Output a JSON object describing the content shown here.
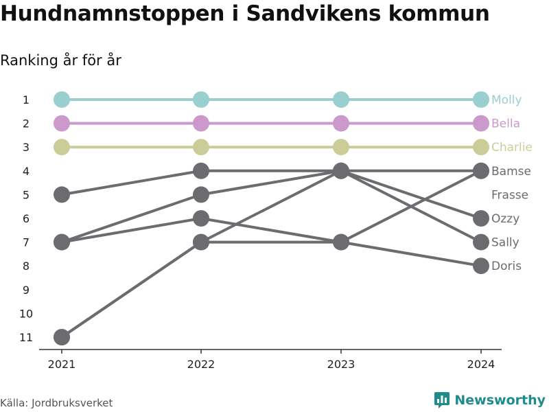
{
  "title": "Hundnamnstoppen i Sandvikens kommun",
  "subtitle": "Ranking år för år",
  "source": "Källa: Jordbruksverket",
  "brand": {
    "name": "Newsworthy",
    "color": "#1f8c8c"
  },
  "chart_data": {
    "type": "line",
    "x": [
      "2021",
      "2022",
      "2023",
      "2024"
    ],
    "y_ticks": [
      "1",
      "2",
      "3",
      "4",
      "5",
      "6",
      "7",
      "8",
      "9",
      "10",
      "11"
    ],
    "ylim": [
      1,
      11
    ],
    "y_inverted": true,
    "grid": false,
    "series": [
      {
        "name": "Molly",
        "values": [
          1,
          1,
          1,
          1
        ],
        "color": "#9acfcf"
      },
      {
        "name": "Bella",
        "values": [
          2,
          2,
          2,
          2
        ],
        "color": "#cc99cc"
      },
      {
        "name": "Charlie",
        "values": [
          3,
          3,
          3,
          3
        ],
        "color": "#cccc99"
      },
      {
        "name": "Bamse",
        "values": [
          5,
          4,
          4,
          4
        ],
        "color": "#6b6b70"
      },
      {
        "name": "Frasse",
        "values": [
          11,
          7,
          7,
          4
        ],
        "color": "#6b6b70"
      },
      {
        "name": "Ozzy",
        "values": [
          7,
          5,
          4,
          6
        ],
        "color": "#6b6b70"
      },
      {
        "name": "Sally",
        "values": [
          11,
          7,
          4,
          7
        ],
        "color": "#6b6b70"
      },
      {
        "name": "Doris",
        "values": [
          7,
          6,
          7,
          8
        ],
        "color": "#6b6b70"
      }
    ],
    "end_labels": [
      {
        "text": "Molly",
        "rank": 1,
        "color": "#9acfcf"
      },
      {
        "text": "Bella",
        "rank": 2,
        "color": "#cc99cc"
      },
      {
        "text": "Charlie",
        "rank": 3,
        "color": "#cccc99"
      },
      {
        "text": "Bamse",
        "rank": 4,
        "color": "#6b6b70"
      },
      {
        "text": "Frasse",
        "rank": 5,
        "color": "#6b6b70"
      },
      {
        "text": "Ozzy",
        "rank": 6,
        "color": "#6b6b70"
      },
      {
        "text": "Sally",
        "rank": 7,
        "color": "#6b6b70"
      },
      {
        "text": "Doris",
        "rank": 8,
        "color": "#6b6b70"
      }
    ]
  }
}
